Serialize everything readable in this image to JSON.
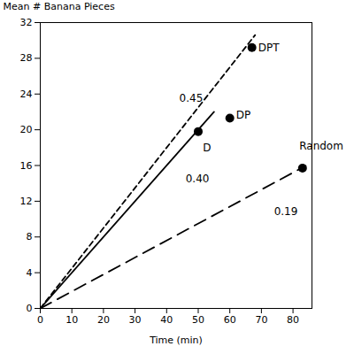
{
  "chart_data": {
    "type": "line",
    "xlabel": "Time (min)",
    "ylabel": "Mean # Banana Pieces",
    "xlim": [
      0,
      86
    ],
    "ylim": [
      0,
      32
    ],
    "xticks": [
      0,
      10,
      20,
      30,
      40,
      50,
      60,
      70,
      80
    ],
    "yticks": [
      0,
      4,
      8,
      12,
      16,
      20,
      24,
      28,
      32
    ],
    "grid": false,
    "series": [
      {
        "type": "line",
        "x": [
          0,
          68
        ],
        "values": [
          0,
          30.6
        ],
        "color": "#000000",
        "line_style": "dashed"
      },
      {
        "type": "line",
        "x": [
          0,
          55
        ],
        "values": [
          0,
          22
        ],
        "color": "#000000",
        "line_style": "solid"
      },
      {
        "type": "line",
        "x": [
          0,
          84
        ],
        "values": [
          0,
          15.96
        ],
        "color": "#000000",
        "line_style": "longdash"
      },
      {
        "type": "scatter",
        "x": [
          50,
          60,
          67,
          83
        ],
        "values": [
          19.8,
          21.3,
          29.2,
          15.7
        ],
        "color": "#000000",
        "marker": "circle"
      }
    ],
    "annotations": [
      {
        "text": "D",
        "x": 51.5,
        "y": 18
      },
      {
        "text": "DP",
        "x": 62,
        "y": 21.6
      },
      {
        "text": "DPT",
        "x": 69,
        "y": 29.2
      },
      {
        "text": "Random",
        "x": 82,
        "y": 18.2
      },
      {
        "text": "0.45",
        "x": 44,
        "y": 23.5
      },
      {
        "text": "0.40",
        "x": 46,
        "y": 14.5
      },
      {
        "text": "0.19",
        "x": 74,
        "y": 10.8
      }
    ]
  }
}
